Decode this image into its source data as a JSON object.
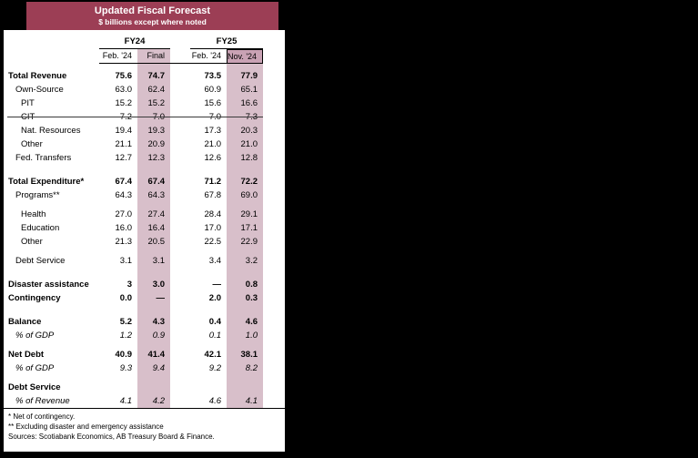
{
  "banner": {
    "title": "Updated Fiscal Forecast",
    "subtitle": "$ billions except where noted"
  },
  "colors": {
    "banner": "#9c3e55",
    "highlight_column": "#d8bfca",
    "highlight_header": "#c9a2b4"
  },
  "chart_data": {
    "type": "table",
    "title": "Updated Fiscal Forecast",
    "subtitle": "$ billions except where noted",
    "column_groups": [
      "FY24",
      "FY25"
    ],
    "col_headers": [
      "Feb. '24",
      "Final",
      "Feb. '24",
      "Nov. '24"
    ],
    "highlighted_columns": [
      "FY24 Final",
      "FY25 Nov. '24"
    ],
    "rows": [
      {
        "label": "Total Revenue",
        "style": "bold",
        "indent": 0,
        "values": [
          "75.6",
          "74.7",
          "73.5",
          "77.9"
        ]
      },
      {
        "label": "Own-Source",
        "indent": 1,
        "values": [
          "63.0",
          "62.4",
          "60.9",
          "65.1"
        ]
      },
      {
        "label": "PIT",
        "indent": 2,
        "values": [
          "15.2",
          "15.2",
          "15.6",
          "16.6"
        ]
      },
      {
        "label": "CIT",
        "indent": 2,
        "strike": true,
        "values": [
          "7.2",
          "7.0",
          "7.0",
          "7.3"
        ]
      },
      {
        "label": "Nat. Resources",
        "indent": 2,
        "values": [
          "19.4",
          "19.3",
          "17.3",
          "20.3"
        ]
      },
      {
        "label": "Other",
        "indent": 2,
        "values": [
          "21.1",
          "20.9",
          "21.0",
          "21.0"
        ]
      },
      {
        "label": "Fed. Transfers",
        "indent": 1,
        "values": [
          "12.7",
          "12.3",
          "12.6",
          "12.8"
        ]
      },
      {
        "spacer": "lg"
      },
      {
        "label": "Total Expenditure*",
        "style": "bold",
        "indent": 0,
        "values": [
          "67.4",
          "67.4",
          "71.2",
          "72.2"
        ]
      },
      {
        "label": "Programs**",
        "indent": 1,
        "values": [
          "64.3",
          "64.3",
          "67.8",
          "69.0"
        ]
      },
      {
        "spacer": "sm"
      },
      {
        "label": "Health",
        "indent": 2,
        "values": [
          "27.0",
          "27.4",
          "28.4",
          "29.1"
        ]
      },
      {
        "label": "Education",
        "indent": 2,
        "values": [
          "16.0",
          "16.4",
          "17.0",
          "17.1"
        ]
      },
      {
        "label": "Other",
        "indent": 2,
        "values": [
          "21.3",
          "20.5",
          "22.5",
          "22.9"
        ]
      },
      {
        "spacer": "sm"
      },
      {
        "label": "Debt Service",
        "indent": 1,
        "values": [
          "3.1",
          "3.1",
          "3.4",
          "3.2"
        ]
      },
      {
        "spacer": "lg"
      },
      {
        "label": "Disaster assistance",
        "style": "bold",
        "indent": 0,
        "values": [
          "3",
          "3.0",
          "—",
          "0.8"
        ]
      },
      {
        "label": "Contingency",
        "style": "bold",
        "indent": 0,
        "values": [
          "0.0",
          "—",
          "2.0",
          "0.3"
        ]
      },
      {
        "spacer": "lg"
      },
      {
        "label": "Balance",
        "style": "bold",
        "indent": 0,
        "values": [
          "5.2",
          "4.3",
          "0.4",
          "4.6"
        ]
      },
      {
        "label": "% of GDP",
        "style": "italic",
        "indent": 1,
        "values": [
          "1.2",
          "0.9",
          "0.1",
          "1.0"
        ]
      },
      {
        "spacer": "sm"
      },
      {
        "label": "Net Debt",
        "style": "bold",
        "indent": 0,
        "values": [
          "40.9",
          "41.4",
          "42.1",
          "38.1"
        ]
      },
      {
        "label": "% of GDP",
        "style": "italic",
        "indent": 1,
        "values": [
          "9.3",
          "9.4",
          "9.2",
          "8.2"
        ]
      },
      {
        "spacer": "sm"
      },
      {
        "label": "Debt Service",
        "style": "bold",
        "indent": 0,
        "values": [
          "",
          "",
          "",
          ""
        ]
      },
      {
        "label": "% of Revenue",
        "style": "italic",
        "indent": 1,
        "values": [
          "4.1",
          "4.2",
          "4.6",
          "4.1"
        ]
      }
    ],
    "footnotes": [
      "* Net of contingency.",
      "**  Excluding disaster and emergency assistance",
      "Sources: Scotiabank Economics, AB Treasury Board & Finance."
    ]
  }
}
